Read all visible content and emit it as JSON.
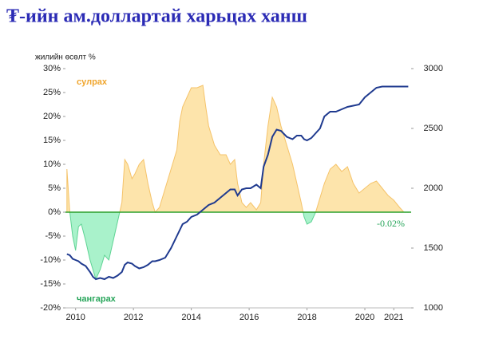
{
  "chart_data": {
    "type": "area-line",
    "title": "₮-ийн ам.доллартай харьцах ханш",
    "ylabel": "жилийн өсөлт %",
    "annotations": [
      "сулрах",
      "чангарах",
      "-0.02%"
    ],
    "x": [
      2009.7,
      2009.8,
      2009.9,
      2010.0,
      2010.1,
      2010.2,
      2010.35,
      2010.5,
      2010.6,
      2010.7,
      2010.85,
      2011.0,
      2011.15,
      2011.3,
      2011.45,
      2011.6,
      2011.7,
      2011.8,
      2011.95,
      2012.05,
      2012.2,
      2012.35,
      2012.5,
      2012.65,
      2012.75,
      2012.9,
      2013.1,
      2013.3,
      2013.5,
      2013.6,
      2013.7,
      2013.85,
      2014.0,
      2014.2,
      2014.4,
      2014.5,
      2014.6,
      2014.8,
      2015.0,
      2015.2,
      2015.35,
      2015.5,
      2015.6,
      2015.75,
      2015.9,
      2016.05,
      2016.25,
      2016.4,
      2016.5,
      2016.65,
      2016.8,
      2016.95,
      2017.1,
      2017.3,
      2017.5,
      2017.65,
      2017.8,
      2017.9,
      2018.0,
      2018.15,
      2018.3,
      2018.45,
      2018.6,
      2018.8,
      2019.0,
      2019.2,
      2019.4,
      2019.6,
      2019.8,
      2020.0,
      2020.2,
      2020.4,
      2020.6,
      2020.8,
      2021.0,
      2021.2,
      2021.35,
      2021.5
    ],
    "series": [
      {
        "name": "жилийн өсөлт",
        "positive_color": "#fde4ab",
        "negative_color": "#a9f2cb",
        "positive_line": "#f5c36a",
        "negative_line": "#5fd394",
        "values": [
          9,
          0,
          -5,
          -8,
          -3,
          -2.5,
          -6,
          -10,
          -12,
          -14,
          -12,
          -9,
          -10,
          -6,
          -2,
          2,
          11,
          10,
          7,
          8,
          10,
          11,
          6,
          2,
          0,
          1,
          5,
          9,
          13,
          19,
          22,
          24,
          26,
          26,
          26.5,
          22,
          18,
          14,
          12,
          12,
          10,
          11,
          6,
          2,
          1,
          2,
          0.5,
          2,
          10,
          18,
          24,
          22,
          18,
          14,
          10,
          6,
          2,
          -1,
          -2.5,
          -2,
          0,
          3,
          6,
          9,
          10,
          8.5,
          9.5,
          6,
          4,
          5,
          6,
          6.5,
          5,
          3.5,
          2.5,
          1,
          0,
          -0.02
        ]
      },
      {
        "name": "ханш",
        "color": "#1f3a8f",
        "axis": "y2",
        "values": [
          1450,
          1440,
          1410,
          1400,
          1390,
          1370,
          1350,
          1300,
          1260,
          1240,
          1250,
          1240,
          1260,
          1250,
          1270,
          1300,
          1360,
          1380,
          1370,
          1350,
          1330,
          1340,
          1360,
          1390,
          1390,
          1400,
          1420,
          1500,
          1600,
          1650,
          1700,
          1720,
          1760,
          1780,
          1820,
          1840,
          1860,
          1880,
          1920,
          1960,
          1990,
          1990,
          1940,
          1990,
          2000,
          2000,
          2030,
          2000,
          2180,
          2280,
          2430,
          2490,
          2480,
          2430,
          2410,
          2440,
          2440,
          2410,
          2400,
          2420,
          2460,
          2500,
          2600,
          2640,
          2640,
          2660,
          2680,
          2690,
          2700,
          2760,
          2800,
          2840,
          2850,
          2850,
          2850,
          2850,
          2850,
          2850
        ]
      }
    ],
    "zero_color": "#2ca02c",
    "xlim": [
      2009.65,
      2021.6
    ],
    "xticks": [
      2010,
      2012,
      2014,
      2016,
      2018,
      2020,
      2021
    ],
    "ylim": [
      -20,
      30
    ],
    "yticks": [
      {
        "value": 30,
        "label": "30%"
      },
      {
        "value": 25,
        "label": "25%"
      },
      {
        "value": 20,
        "label": "20%"
      },
      {
        "value": 15,
        "label": "15%"
      },
      {
        "value": 10,
        "label": "10%"
      },
      {
        "value": 5,
        "label": "5%"
      },
      {
        "value": 0,
        "label": "0%"
      },
      {
        "value": -5,
        "label": "-5%"
      },
      {
        "value": -10,
        "label": "-10%"
      },
      {
        "value": -15,
        "label": "-15%"
      },
      {
        "value": -20,
        "label": "-20%"
      }
    ],
    "y2lim": [
      1000,
      3000
    ],
    "y2ticks": [
      1000,
      1500,
      2000,
      2500,
      3000
    ]
  }
}
